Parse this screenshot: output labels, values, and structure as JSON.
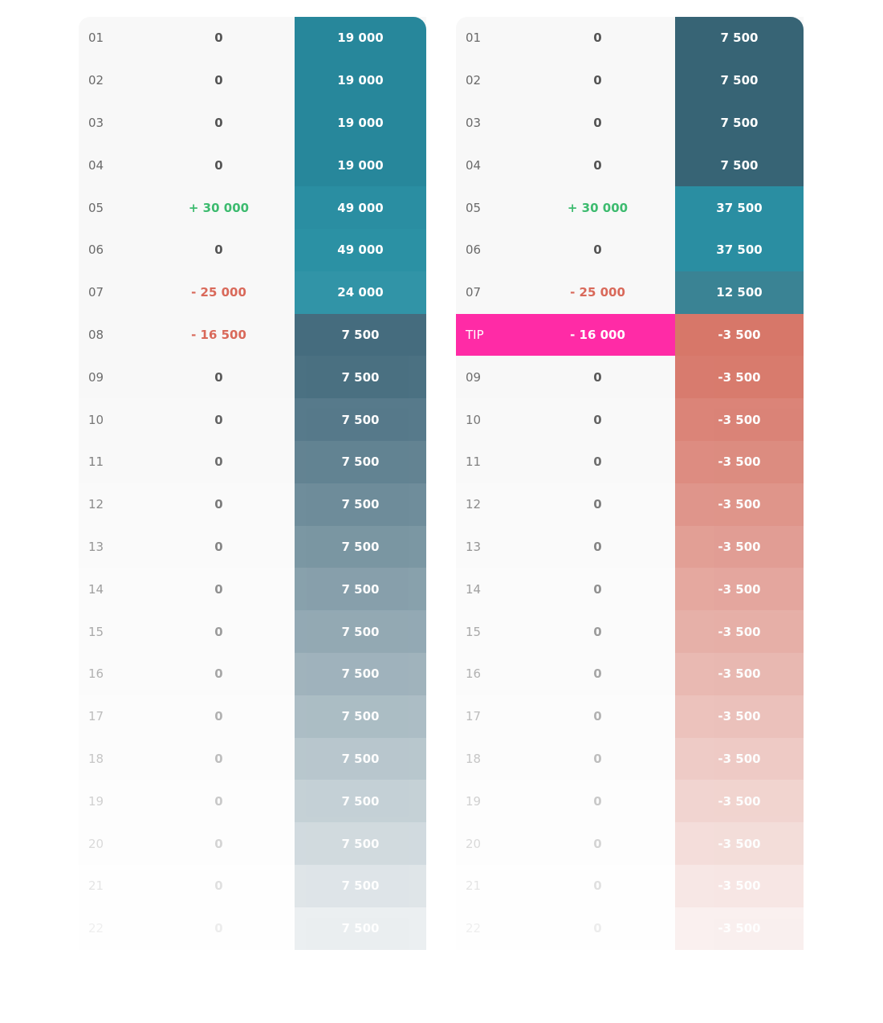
{
  "tables": [
    {
      "rows": [
        {
          "label": "01",
          "change": "0",
          "balance": "19 000"
        },
        {
          "label": "02",
          "change": "0",
          "balance": "19 000"
        },
        {
          "label": "03",
          "change": "0",
          "balance": "19 000"
        },
        {
          "label": "04",
          "change": "0",
          "balance": "19 000"
        },
        {
          "label": "05",
          "change": "+ 30 000",
          "balance": "49 000"
        },
        {
          "label": "06",
          "change": "0",
          "balance": "49 000"
        },
        {
          "label": "07",
          "change": "- 25 000",
          "balance": "24 000"
        },
        {
          "label": "08",
          "change": "- 16 500",
          "balance": "7 500"
        },
        {
          "label": "09",
          "change": "0",
          "balance": "7 500"
        },
        {
          "label": "10",
          "change": "0",
          "balance": "7 500"
        },
        {
          "label": "11",
          "change": "0",
          "balance": "7 500"
        },
        {
          "label": "12",
          "change": "0",
          "balance": "7 500"
        },
        {
          "label": "13",
          "change": "0",
          "balance": "7 500"
        },
        {
          "label": "14",
          "change": "0",
          "balance": "7 500"
        },
        {
          "label": "15",
          "change": "0",
          "balance": "7 500"
        },
        {
          "label": "16",
          "change": "0",
          "balance": "7 500"
        },
        {
          "label": "17",
          "change": "0",
          "balance": "7 500"
        },
        {
          "label": "18",
          "change": "0",
          "balance": "7 500"
        },
        {
          "label": "19",
          "change": "0",
          "balance": "7 500"
        },
        {
          "label": "20",
          "change": "0",
          "balance": "7 500"
        },
        {
          "label": "21",
          "change": "0",
          "balance": "7 500"
        },
        {
          "label": "22",
          "change": "0",
          "balance": "7 500"
        }
      ]
    },
    {
      "rows": [
        {
          "label": "01",
          "change": "0",
          "balance": "7 500"
        },
        {
          "label": "02",
          "change": "0",
          "balance": "7 500"
        },
        {
          "label": "03",
          "change": "0",
          "balance": "7 500"
        },
        {
          "label": "04",
          "change": "0",
          "balance": "7 500"
        },
        {
          "label": "05",
          "change": "+ 30 000",
          "balance": "37 500"
        },
        {
          "label": "06",
          "change": "0",
          "balance": "37 500"
        },
        {
          "label": "07",
          "change": "- 25 000",
          "balance": "12 500"
        },
        {
          "label": "TIP",
          "change": "- 16 000",
          "balance": "-3 500"
        },
        {
          "label": "09",
          "change": "0",
          "balance": "-3 500"
        },
        {
          "label": "10",
          "change": "0",
          "balance": "-3 500"
        },
        {
          "label": "11",
          "change": "0",
          "balance": "-3 500"
        },
        {
          "label": "12",
          "change": "0",
          "balance": "-3 500"
        },
        {
          "label": "13",
          "change": "0",
          "balance": "-3 500"
        },
        {
          "label": "14",
          "change": "0",
          "balance": "-3 500"
        },
        {
          "label": "15",
          "change": "0",
          "balance": "-3 500"
        },
        {
          "label": "16",
          "change": "0",
          "balance": "-3 500"
        },
        {
          "label": "17",
          "change": "0",
          "balance": "-3 500"
        },
        {
          "label": "18",
          "change": "0",
          "balance": "-3 500"
        },
        {
          "label": "19",
          "change": "0",
          "balance": "-3 500"
        },
        {
          "label": "20",
          "change": "0",
          "balance": "-3 500"
        },
        {
          "label": "21",
          "change": "0",
          "balance": "-3 500"
        },
        {
          "label": "22",
          "change": "0",
          "balance": "-3 500"
        }
      ]
    }
  ]
}
